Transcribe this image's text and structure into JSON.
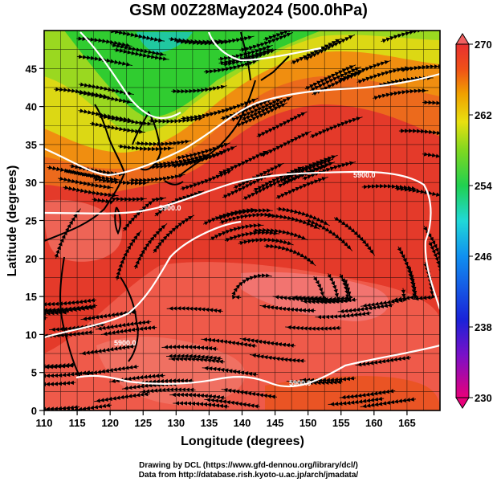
{
  "figure": {
    "title": "GSM 00Z28May2024 (500.0hPa)",
    "xlabel": "Longitude (degrees)",
    "ylabel": "Latitude  (degrees)",
    "credit_line_1": "Drawing by DCL (https://www.gfd-dennou.org/library/dcl/)",
    "credit_line_2": "Data from http://database.rish.kyoto-u.ac.jp/arch/jmadata/"
  },
  "map": {
    "lon_range": [
      110,
      170
    ],
    "lat_range": [
      0,
      50
    ],
    "x_ticks": [
      110,
      115,
      120,
      125,
      130,
      135,
      140,
      145,
      150,
      155,
      160,
      165
    ],
    "y_ticks": [
      0,
      5,
      10,
      15,
      20,
      25,
      30,
      35,
      40,
      45
    ],
    "grid": true,
    "field": "temperature (shaded), winds (streamlines), geopotential height (white contours)"
  },
  "colorbar": {
    "ticks": [
      "270",
      "262",
      "254",
      "246",
      "238",
      "230"
    ],
    "min": 230,
    "max": 270,
    "colors": [
      "#e8007a",
      "#7a10c8",
      "#1a22d8",
      "#1090f0",
      "#20d8d8",
      "#20d050",
      "#80d820",
      "#e8e010",
      "#f0a000",
      "#f05018",
      "#e82a2a",
      "#f06060"
    ]
  },
  "contours": [
    {
      "label": "5900.0"
    },
    {
      "label": "5900.0"
    },
    {
      "label": "5900.0"
    },
    {
      "label": "5900.0"
    }
  ],
  "colors": {
    "contour": "#ffffff",
    "coast": "#000000",
    "streamline": "#000000"
  }
}
